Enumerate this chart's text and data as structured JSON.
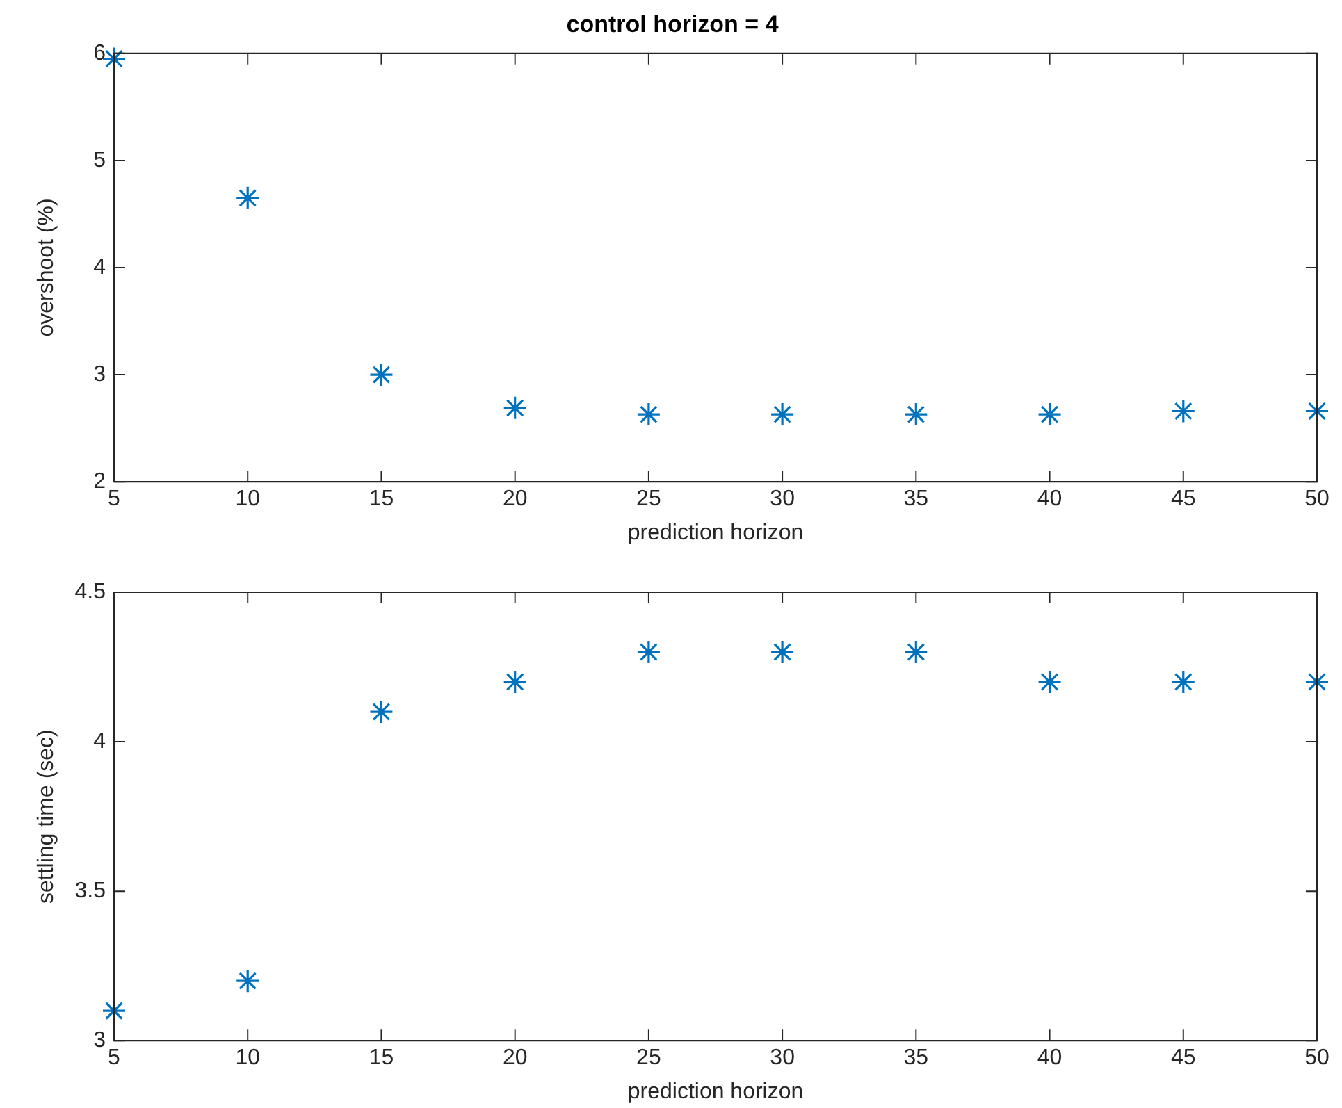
{
  "chart_data": [
    {
      "type": "scatter",
      "title": "control horizon = 4",
      "xlabel": "prediction horizon",
      "ylabel": "overshoot (%)",
      "x": [
        5,
        10,
        15,
        20,
        25,
        30,
        35,
        40,
        45,
        50
      ],
      "series": [
        {
          "color": "#0072bd",
          "values": [
            5.95,
            4.65,
            3.0,
            2.69,
            2.63,
            2.63,
            2.63,
            2.63,
            2.66,
            2.66
          ]
        }
      ],
      "xlim": [
        5,
        50
      ],
      "xticks": [
        5,
        10,
        15,
        20,
        25,
        30,
        35,
        40,
        45,
        50
      ],
      "ylim": [
        2,
        6
      ],
      "yticks": [
        2,
        3,
        4,
        5,
        6
      ],
      "grid": false,
      "legend": false,
      "marker": "cross"
    },
    {
      "type": "scatter",
      "xlabel": "prediction horizon",
      "ylabel": "settling time (sec)",
      "x": [
        5,
        10,
        15,
        20,
        25,
        30,
        35,
        40,
        45,
        50
      ],
      "series": [
        {
          "color": "#0072bd",
          "values": [
            3.1,
            3.2,
            4.1,
            4.2,
            4.3,
            4.3,
            4.3,
            4.2,
            4.2,
            4.2
          ]
        }
      ],
      "xlim": [
        5,
        50
      ],
      "xticks": [
        5,
        10,
        15,
        20,
        25,
        30,
        35,
        40,
        45,
        50
      ],
      "ylim": [
        3,
        4.5
      ],
      "yticks": [
        3,
        3.5,
        4,
        4.5
      ],
      "grid": false,
      "legend": false,
      "marker": "cross"
    }
  ]
}
